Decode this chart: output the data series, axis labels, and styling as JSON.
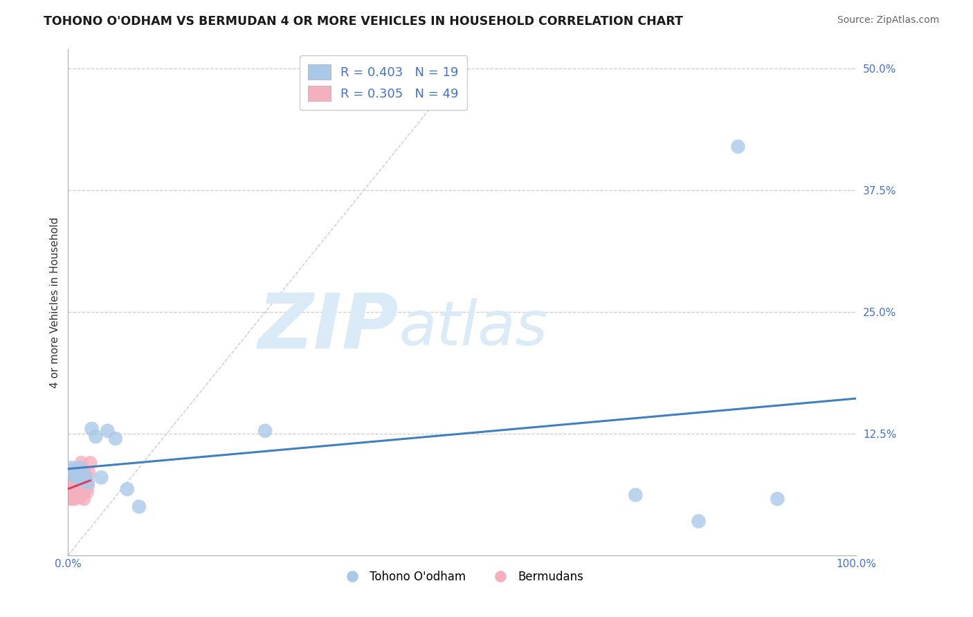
{
  "title": "TOHONO O'ODHAM VS BERMUDAN 4 OR MORE VEHICLES IN HOUSEHOLD CORRELATION CHART",
  "source": "Source: ZipAtlas.com",
  "ylabel": "4 or more Vehicles in Household",
  "xlim": [
    0.0,
    1.0
  ],
  "ylim": [
    0.0,
    0.52
  ],
  "xtick_positions": [
    0.0,
    0.25,
    0.5,
    0.75,
    1.0
  ],
  "xticklabels": [
    "0.0%",
    "",
    "",
    "",
    "100.0%"
  ],
  "ytick_positions": [
    0.0,
    0.125,
    0.25,
    0.375,
    0.5
  ],
  "yticklabels": [
    "",
    "12.5%",
    "25.0%",
    "37.5%",
    "50.0%"
  ],
  "legend_labels": [
    "Tohono O'odham",
    "Bermudans"
  ],
  "R_blue": 0.403,
  "N_blue": 19,
  "R_pink": 0.305,
  "N_pink": 49,
  "blue_color": "#aac9e8",
  "pink_color": "#f5b0c0",
  "blue_line_color": "#4080c0",
  "pink_line_color": "#d84060",
  "diag_line_color": "#cccccc",
  "background_color": "#ffffff",
  "grid_color": "#cccccc",
  "blue_scatter_x": [
    0.005,
    0.008,
    0.012,
    0.015,
    0.018,
    0.022,
    0.025,
    0.03,
    0.035,
    0.042,
    0.05,
    0.06,
    0.075,
    0.09,
    0.25,
    0.72,
    0.8,
    0.85,
    0.9
  ],
  "blue_scatter_y": [
    0.09,
    0.082,
    0.08,
    0.09,
    0.078,
    0.082,
    0.075,
    0.13,
    0.122,
    0.08,
    0.128,
    0.12,
    0.068,
    0.05,
    0.128,
    0.062,
    0.035,
    0.42,
    0.058
  ],
  "pink_scatter_x": [
    0.002,
    0.003,
    0.003,
    0.004,
    0.004,
    0.005,
    0.005,
    0.005,
    0.006,
    0.006,
    0.006,
    0.007,
    0.007,
    0.007,
    0.008,
    0.008,
    0.008,
    0.009,
    0.009,
    0.009,
    0.01,
    0.01,
    0.01,
    0.01,
    0.011,
    0.011,
    0.012,
    0.012,
    0.013,
    0.013,
    0.014,
    0.014,
    0.015,
    0.015,
    0.016,
    0.016,
    0.017,
    0.017,
    0.018,
    0.019,
    0.02,
    0.02,
    0.021,
    0.022,
    0.023,
    0.024,
    0.025,
    0.026,
    0.028
  ],
  "pink_scatter_y": [
    0.072,
    0.065,
    0.075,
    0.06,
    0.058,
    0.088,
    0.078,
    0.068,
    0.062,
    0.07,
    0.082,
    0.06,
    0.085,
    0.072,
    0.058,
    0.075,
    0.065,
    0.078,
    0.062,
    0.085,
    0.072,
    0.062,
    0.082,
    0.075,
    0.06,
    0.078,
    0.07,
    0.065,
    0.082,
    0.068,
    0.075,
    0.06,
    0.08,
    0.065,
    0.075,
    0.06,
    0.095,
    0.072,
    0.082,
    0.065,
    0.058,
    0.072,
    0.075,
    0.068,
    0.08,
    0.065,
    0.072,
    0.085,
    0.095
  ]
}
